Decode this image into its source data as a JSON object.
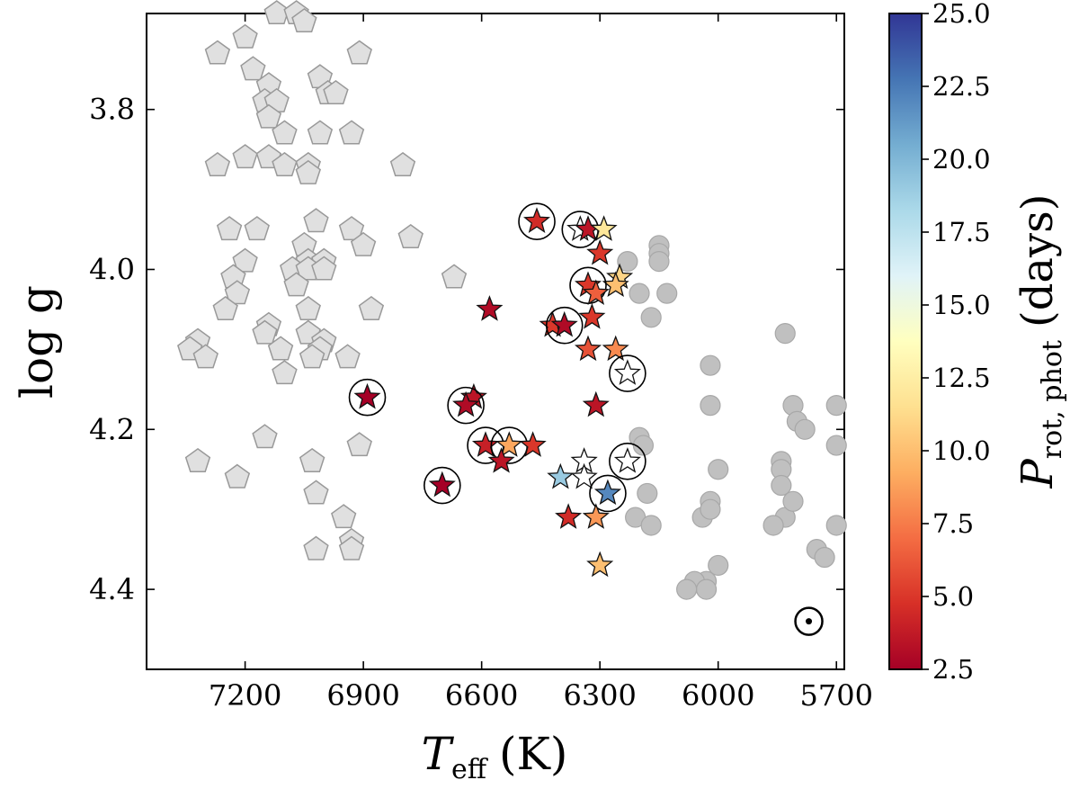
{
  "chart_data": {
    "type": "scatter",
    "xlabel": "T",
    "xlabel_sub": "eff",
    "xlabel_unit": "(K)",
    "ylabel": "log g",
    "xlim": [
      7450,
      5680
    ],
    "ylim": [
      4.5,
      3.68
    ],
    "x_ticks": [
      7200,
      6900,
      6600,
      6300,
      6000,
      5700
    ],
    "x_tick_labels": [
      "7200",
      "6900",
      "6600",
      "6300",
      "6000",
      "5700"
    ],
    "y_ticks": [
      3.8,
      4.0,
      4.2,
      4.4
    ],
    "y_tick_labels": [
      "3.8",
      "4.0",
      "4.2",
      "4.4"
    ],
    "grid": false,
    "colorbar": {
      "label": "P",
      "label_sub": "rot, phot",
      "label_unit": "(days)",
      "range": [
        2.5,
        25.0
      ],
      "ticks": [
        2.5,
        5.0,
        7.5,
        10.0,
        12.5,
        15.0,
        17.5,
        20.0,
        22.5,
        25.0
      ],
      "tick_labels": [
        "2.5",
        "5.0",
        "7.5",
        "10.0",
        "12.5",
        "15.0",
        "17.5",
        "20.0",
        "22.5",
        "25.0"
      ],
      "colormap": "RdYlBu",
      "colors": [
        "#a50026",
        "#d73027",
        "#f46d43",
        "#fdae61",
        "#fee090",
        "#ffffbf",
        "#e0f3f8",
        "#abd9e9",
        "#74add1",
        "#4575b4",
        "#313695"
      ]
    },
    "series": [
      {
        "marker": "pentagon",
        "color": "#e0e0e0",
        "points": [
          [
            7120,
            3.68
          ],
          [
            7070,
            3.68
          ],
          [
            7050,
            3.69
          ],
          [
            7200,
            3.71
          ],
          [
            7270,
            3.73
          ],
          [
            6910,
            3.73
          ],
          [
            7180,
            3.75
          ],
          [
            7140,
            3.77
          ],
          [
            7010,
            3.76
          ],
          [
            6990,
            3.78
          ],
          [
            7150,
            3.79
          ],
          [
            7120,
            3.79
          ],
          [
            6970,
            3.78
          ],
          [
            7140,
            3.81
          ],
          [
            6930,
            3.83
          ],
          [
            7100,
            3.83
          ],
          [
            7010,
            3.83
          ],
          [
            7200,
            3.86
          ],
          [
            7140,
            3.86
          ],
          [
            7040,
            3.87
          ],
          [
            7270,
            3.87
          ],
          [
            7100,
            3.87
          ],
          [
            6800,
            3.87
          ],
          [
            7040,
            3.88
          ],
          [
            7240,
            3.95
          ],
          [
            7170,
            3.95
          ],
          [
            7020,
            3.94
          ],
          [
            6930,
            3.95
          ],
          [
            7050,
            3.97
          ],
          [
            6900,
            3.97
          ],
          [
            6780,
            3.96
          ],
          [
            7040,
            3.99
          ],
          [
            7200,
            3.99
          ],
          [
            7000,
            3.99
          ],
          [
            7080,
            4.0
          ],
          [
            7230,
            4.01
          ],
          [
            7040,
            4.0
          ],
          [
            7000,
            4.0
          ],
          [
            6670,
            4.01
          ],
          [
            7070,
            4.02
          ],
          [
            7220,
            4.03
          ],
          [
            7250,
            4.05
          ],
          [
            7040,
            4.05
          ],
          [
            6880,
            4.05
          ],
          [
            7140,
            4.07
          ],
          [
            7150,
            4.08
          ],
          [
            7040,
            4.08
          ],
          [
            7000,
            4.09
          ],
          [
            7010,
            4.1
          ],
          [
            7320,
            4.09
          ],
          [
            7340,
            4.1
          ],
          [
            7110,
            4.1
          ],
          [
            6940,
            4.11
          ],
          [
            7300,
            4.11
          ],
          [
            7030,
            4.11
          ],
          [
            7100,
            4.13
          ],
          [
            7150,
            4.21
          ],
          [
            6910,
            4.22
          ],
          [
            7320,
            4.24
          ],
          [
            7030,
            4.24
          ],
          [
            7220,
            4.26
          ],
          [
            7020,
            4.28
          ],
          [
            6950,
            4.31
          ],
          [
            6930,
            4.34
          ],
          [
            7020,
            4.35
          ],
          [
            6930,
            4.35
          ]
        ]
      },
      {
        "marker": "circle",
        "color": "#c0c0c0",
        "points": [
          [
            6230,
            3.99
          ],
          [
            6150,
            3.97
          ],
          [
            6150,
            3.98
          ],
          [
            6150,
            3.99
          ],
          [
            6200,
            4.03
          ],
          [
            6130,
            4.03
          ],
          [
            6170,
            4.06
          ],
          [
            5830,
            4.08
          ],
          [
            6020,
            4.12
          ],
          [
            6020,
            4.17
          ],
          [
            5810,
            4.17
          ],
          [
            5800,
            4.19
          ],
          [
            5780,
            4.2
          ],
          [
            5700,
            4.17
          ],
          [
            6200,
            4.21
          ],
          [
            6190,
            4.22
          ],
          [
            5700,
            4.22
          ],
          [
            5840,
            4.24
          ],
          [
            5840,
            4.25
          ],
          [
            6000,
            4.25
          ],
          [
            5840,
            4.27
          ],
          [
            5830,
            4.31
          ],
          [
            5810,
            4.29
          ],
          [
            6180,
            4.28
          ],
          [
            6020,
            4.29
          ],
          [
            6040,
            4.31
          ],
          [
            6020,
            4.3
          ],
          [
            6210,
            4.31
          ],
          [
            6170,
            4.32
          ],
          [
            5860,
            4.32
          ],
          [
            5700,
            4.32
          ],
          [
            5750,
            4.35
          ],
          [
            5730,
            4.36
          ],
          [
            6000,
            4.37
          ],
          [
            6030,
            4.39
          ],
          [
            6060,
            4.39
          ],
          [
            6030,
            4.4
          ],
          [
            6080,
            4.4
          ]
        ]
      },
      {
        "marker": "star",
        "points": [
          [
            6460,
            3.94,
            4.5,
            true
          ],
          [
            6350,
            3.95,
            null,
            true
          ],
          [
            6330,
            3.95,
            3.5,
            false
          ],
          [
            6290,
            3.95,
            12.0,
            false
          ],
          [
            6300,
            3.98,
            5.0,
            false
          ],
          [
            6250,
            4.01,
            11.0,
            false
          ],
          [
            6260,
            4.02,
            10.0,
            false
          ],
          [
            6330,
            4.02,
            5.0,
            true
          ],
          [
            6310,
            4.03,
            6.5,
            false
          ],
          [
            6580,
            4.05,
            3.0,
            false
          ],
          [
            6420,
            4.07,
            5.0,
            false
          ],
          [
            6390,
            4.07,
            3.0,
            true
          ],
          [
            6320,
            4.06,
            5.0,
            false
          ],
          [
            6260,
            4.1,
            8.0,
            false
          ],
          [
            6330,
            4.1,
            6.0,
            false
          ],
          [
            6230,
            4.13,
            null,
            true
          ],
          [
            6890,
            4.16,
            2.5,
            true
          ],
          [
            6620,
            4.16,
            3.5,
            false
          ],
          [
            6640,
            4.17,
            3.0,
            true
          ],
          [
            6310,
            4.17,
            3.5,
            false
          ],
          [
            6590,
            4.22,
            4.0,
            true
          ],
          [
            6530,
            4.22,
            9.0,
            true
          ],
          [
            6470,
            4.22,
            5.0,
            false
          ],
          [
            6550,
            4.24,
            3.5,
            false
          ],
          [
            6340,
            4.24,
            null,
            false
          ],
          [
            6230,
            4.24,
            null,
            true
          ],
          [
            6400,
            4.26,
            19.0,
            false
          ],
          [
            6340,
            4.26,
            null,
            false
          ],
          [
            6280,
            4.28,
            22.0,
            true
          ],
          [
            6700,
            4.27,
            2.5,
            true
          ],
          [
            6380,
            4.31,
            4.5,
            false
          ],
          [
            6310,
            4.31,
            8.5,
            false
          ],
          [
            6300,
            4.37,
            10.0,
            false
          ]
        ]
      }
    ],
    "sun_symbol": [
      5770,
      4.44
    ]
  }
}
